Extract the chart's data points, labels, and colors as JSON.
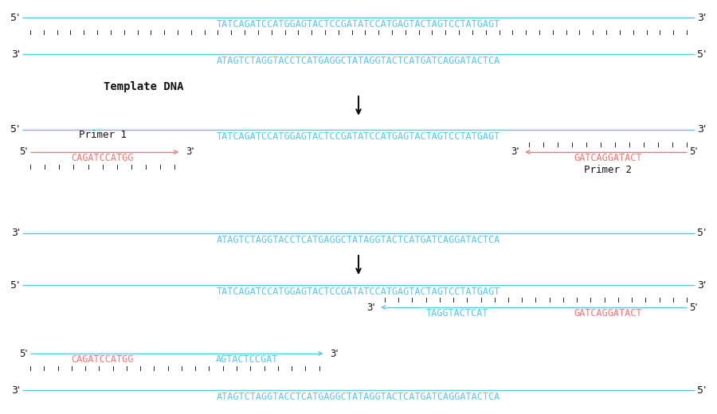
{
  "dna_color": "#5bc8e8",
  "primer_color": "#f07878",
  "dark_dna_color": "#3ab8d8",
  "text_color": "#111111",
  "tick_color": "#222222",
  "seq_top": "TATCAGATCCATGGAGTACTCCGATATCCATGAGTACTAGTCCTATGAGT",
  "seq_bot": "ATAGTCTAGGTACCTCATGAGGCTATAGGTACTCATGATCAGGATACTCA",
  "primer1_seq": "CAGATCCATGG",
  "primer2_seq": "GATCAGGATACT",
  "primer1_ext": "AGTACTCCGAT",
  "primer2_ext": "TAGGTACTCAT",
  "n_seq": 49,
  "figsize": [
    9.0,
    5.2
  ],
  "dpi": 100
}
